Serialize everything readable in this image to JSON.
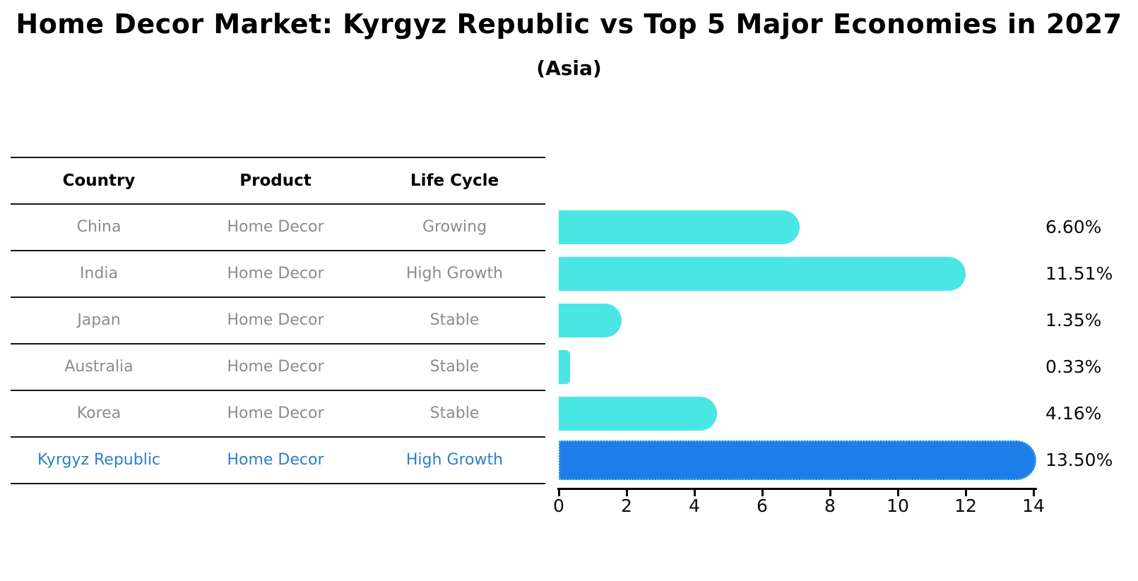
{
  "title": "Home Decor Market: Kyrgyz Republic vs Top 5 Major Economies in 2027",
  "subtitle": "(Asia)",
  "table": {
    "headers": [
      "Country",
      "Product",
      "Life Cycle"
    ],
    "rows": [
      {
        "country": "China",
        "product": "Home Decor",
        "life_cycle": "Growing",
        "highlight": false
      },
      {
        "country": "India",
        "product": "Home Decor",
        "life_cycle": "High Growth",
        "highlight": false
      },
      {
        "country": "Japan",
        "product": "Home Decor",
        "life_cycle": "Stable",
        "highlight": false
      },
      {
        "country": "Australia",
        "product": "Home Decor",
        "life_cycle": "Stable",
        "highlight": false
      },
      {
        "country": "Korea",
        "product": "Home Decor",
        "life_cycle": "Stable",
        "highlight": false
      },
      {
        "country": "Kyrgyz Republic",
        "product": "Home Decor",
        "life_cycle": "High Growth",
        "highlight": true
      }
    ]
  },
  "chart_data": {
    "type": "bar",
    "orientation": "horizontal",
    "title": "Home Decor Market: Kyrgyz Republic vs Top 5 Major Economies in 2027",
    "subtitle": "(Asia)",
    "categories": [
      "China",
      "India",
      "Japan",
      "Australia",
      "Korea",
      "Kyrgyz Republic"
    ],
    "values": [
      6.6,
      11.51,
      1.35,
      0.33,
      4.16,
      13.5
    ],
    "value_labels": [
      "6.60%",
      "11.51%",
      "1.35%",
      "0.33%",
      "4.16%",
      "13.50%"
    ],
    "xlabel": "",
    "ylabel": "",
    "xlim": [
      0,
      14
    ],
    "x_ticks": [
      0,
      2,
      4,
      6,
      8,
      10,
      12,
      14
    ],
    "grid": false,
    "legend": false,
    "highlight_index": 5,
    "bar_color": "#49e6e4",
    "highlight_bar_color": "#1e7de8",
    "highlight_border_color": "#5bbdee",
    "highlight_text_color": "#2e7ec7",
    "row_text_color": "#8c8c8c"
  }
}
